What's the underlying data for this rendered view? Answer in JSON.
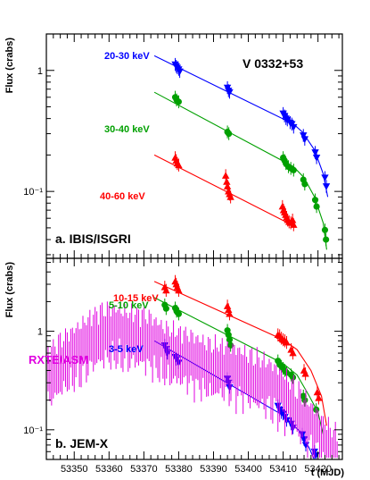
{
  "chart_data": [
    {
      "type": "scatter",
      "panel_label": "a. IBIS/ISGRI",
      "source_label": "V 0332+53",
      "ylabel": "Flux (crabs)",
      "yscale": "log",
      "ylim": [
        0.028,
        2.0
      ],
      "xlim": [
        53342,
        53427
      ],
      "yticks": [
        {
          "value": 0.1,
          "label": "10⁻¹"
        },
        {
          "value": 1,
          "label": "1"
        }
      ],
      "series": [
        {
          "name": "20-30 keV",
          "color": "#0000ff",
          "marker": "triangle-down",
          "x": [
            53379,
            53379.3,
            53379.6,
            53380,
            53380.3,
            53394,
            53394.3,
            53394.6,
            53410,
            53410.4,
            53410.8,
            53411.2,
            53412,
            53412.5,
            53413,
            53415.8,
            53416.2,
            53419.2,
            53419.6,
            53422,
            53422.4
          ],
          "y": [
            1.12,
            1.08,
            1.05,
            1.02,
            0.98,
            0.72,
            0.68,
            0.66,
            0.44,
            0.42,
            0.4,
            0.39,
            0.37,
            0.36,
            0.34,
            0.29,
            0.27,
            0.21,
            0.19,
            0.13,
            0.11
          ],
          "fit": [
            [
              53373,
              1.32
            ],
            [
              53413,
              0.36
            ],
            [
              53415.5,
              0.31
            ],
            [
              53419,
              0.22
            ],
            [
              53421.5,
              0.14
            ],
            [
              53422.8,
              0.09
            ]
          ]
        },
        {
          "name": "30-40 keV",
          "color": "#00a000",
          "marker": "circle",
          "x": [
            53379,
            53379.4,
            53380,
            53394,
            53394.4,
            53410,
            53410.4,
            53410.8,
            53411.5,
            53412.2,
            53413,
            53415.8,
            53416.2,
            53419.2,
            53419.6,
            53422,
            53422.3
          ],
          "y": [
            0.6,
            0.57,
            0.55,
            0.31,
            0.3,
            0.19,
            0.18,
            0.17,
            0.16,
            0.155,
            0.15,
            0.125,
            0.115,
            0.085,
            0.075,
            0.048,
            0.04
          ],
          "fit": [
            [
              53373,
              0.66
            ],
            [
              53413,
              0.16
            ],
            [
              53416,
              0.13
            ],
            [
              53419,
              0.09
            ],
            [
              53421.5,
              0.055
            ],
            [
              53422.5,
              0.033
            ]
          ]
        },
        {
          "name": "40-60 keV",
          "color": "#ff0000",
          "marker": "triangle-up",
          "x": [
            53379,
            53379.3,
            53379.6,
            53380,
            53393.5,
            53393.8,
            53394,
            53394.3,
            53394.6,
            53394.9,
            53409.8,
            53410.1,
            53410.4,
            53410.7,
            53411,
            53411.3,
            53411.7,
            53412.2,
            53412.7,
            53413
          ],
          "y": [
            0.19,
            0.18,
            0.17,
            0.165,
            0.135,
            0.12,
            0.11,
            0.1,
            0.095,
            0.09,
            0.075,
            0.07,
            0.067,
            0.064,
            0.061,
            0.058,
            0.056,
            0.055,
            0.058,
            0.053
          ],
          "fit": [
            [
              53373,
              0.2
            ],
            [
              53413,
              0.052
            ]
          ]
        }
      ]
    },
    {
      "type": "scatter",
      "panel_label": "b. JEM-X",
      "ylabel": "Flux (crabs)",
      "xlabel": "t (MJD)",
      "yscale": "log",
      "ylim": [
        0.05,
        5.5
      ],
      "xlim": [
        53342,
        53427
      ],
      "xticks": [
        53350,
        53360,
        53370,
        53380,
        53390,
        53400,
        53410,
        53420
      ],
      "yticks": [
        {
          "value": 0.1,
          "label": "10⁻¹"
        },
        {
          "value": 1,
          "label": "1"
        }
      ],
      "series": [
        {
          "name": "10-15 keV",
          "color": "#ff0000",
          "marker": "triangle-up",
          "x": [
            53376,
            53376.4,
            53379,
            53379.3,
            53379.6,
            53380,
            53394,
            53394.3,
            53394.6,
            53408.5,
            53409,
            53409.5,
            53410,
            53410.5,
            53411,
            53412.3,
            53412.8,
            53416,
            53416.4,
            53419.8,
            53420.2
          ],
          "y": [
            2.8,
            2.6,
            3.2,
            3.0,
            2.8,
            2.6,
            1.8,
            1.65,
            1.5,
            0.92,
            0.9,
            0.85,
            0.82,
            0.8,
            0.77,
            0.65,
            0.6,
            0.4,
            0.37,
            0.24,
            0.21
          ],
          "fit": [
            [
              53373,
              3.2
            ],
            [
              53410,
              0.82
            ],
            [
              53414,
              0.65
            ],
            [
              53418,
              0.4
            ],
            [
              53421,
              0.22
            ],
            [
              53422.5,
              0.11
            ]
          ]
        },
        {
          "name": "5-10 keV",
          "color": "#00a000",
          "marker": "circle",
          "x": [
            53376,
            53376.4,
            53379,
            53379.4,
            53380,
            53394,
            53394.3,
            53394.6,
            53394.9,
            53408.5,
            53409,
            53409.5,
            53410,
            53410.5,
            53411,
            53412.3,
            53412.8,
            53415.8,
            53416.2,
            53419.5
          ],
          "y": [
            1.85,
            1.7,
            1.72,
            1.6,
            1.5,
            1.02,
            0.92,
            0.82,
            0.72,
            0.5,
            0.46,
            0.44,
            0.42,
            0.4,
            0.38,
            0.36,
            0.34,
            0.22,
            0.2,
            0.16
          ],
          "fit": [
            [
              53373,
              2.2
            ],
            [
              53410,
              0.47
            ],
            [
              53414,
              0.36
            ],
            [
              53417.5,
              0.22
            ],
            [
              53420,
              0.15
            ],
            [
              53421.5,
              0.09
            ]
          ]
        },
        {
          "name": "3-5 keV",
          "color": "#0000ff",
          "marker": "triangle-down",
          "x": [
            53376,
            53376.4,
            53376.8,
            53379,
            53379.4,
            53380,
            53394,
            53394.3,
            53394.6,
            53408.5,
            53409,
            53409.5,
            53410,
            53410.5,
            53411,
            53412.3,
            53412.8,
            53415.5,
            53416,
            53416.5,
            53419,
            53419.4
          ],
          "y": [
            0.72,
            0.66,
            0.6,
            0.55,
            0.52,
            0.48,
            0.33,
            0.3,
            0.27,
            0.175,
            0.16,
            0.15,
            0.145,
            0.135,
            0.125,
            0.115,
            0.105,
            0.09,
            0.08,
            0.07,
            0.06,
            0.055
          ],
          "fit": [
            [
              53373,
              0.8
            ],
            [
              53410,
              0.14
            ],
            [
              53415,
              0.095
            ],
            [
              53417.5,
              0.065
            ],
            [
              53419.5,
              0.045
            ]
          ]
        },
        {
          "name": "RXTE/ASM",
          "color": "#e000e0",
          "marker": "errorbar",
          "x": [
            53342,
            53344,
            53346,
            53348,
            53350,
            53352,
            53354,
            53356,
            53358,
            53360,
            53362,
            53364,
            53366,
            53368,
            53370,
            53372,
            53374,
            53376,
            53378,
            53380,
            53382,
            53384,
            53386,
            53388,
            53390,
            53392,
            53394,
            53396,
            53398,
            53400,
            53402,
            53404,
            53406,
            53408,
            53410,
            53412,
            53414,
            53416,
            53418,
            53420,
            53422,
            53424,
            53426
          ],
          "y": [
            0.4,
            0.45,
            0.52,
            0.6,
            0.7,
            0.8,
            0.9,
            0.98,
            1.05,
            1.1,
            1.12,
            1.1,
            1.05,
            1.0,
            0.95,
            0.9,
            0.82,
            0.75,
            0.7,
            0.65,
            0.62,
            0.58,
            0.55,
            0.52,
            0.5,
            0.48,
            0.46,
            0.44,
            0.42,
            0.4,
            0.38,
            0.35,
            0.32,
            0.28,
            0.25,
            0.22,
            0.18,
            0.15,
            0.12,
            0.1,
            0.08,
            0.07,
            0.06
          ]
        }
      ]
    }
  ]
}
